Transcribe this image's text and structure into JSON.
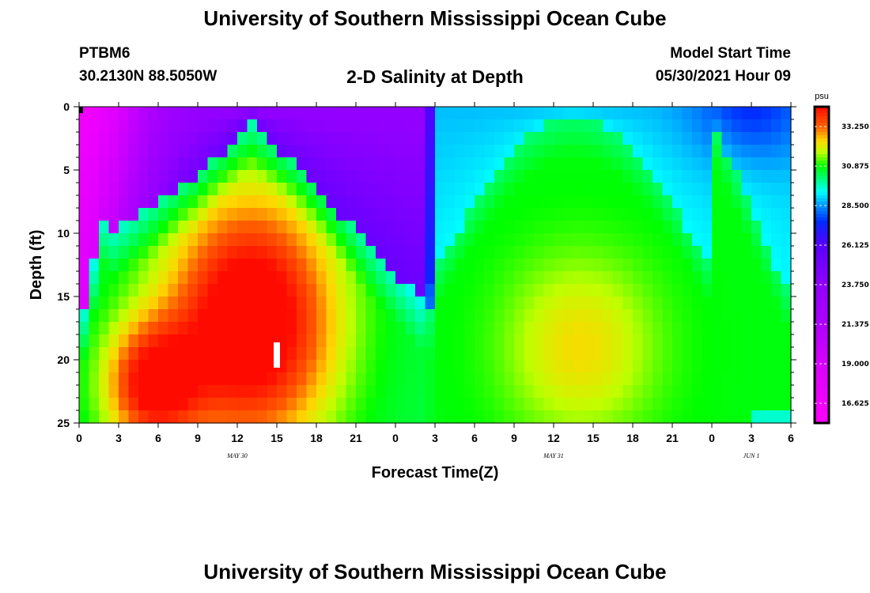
{
  "header": {
    "title": "University of Southern Mississippi Ocean Cube",
    "station": "PTBM6",
    "coordinates": "30.2130N  88.5050W",
    "subtitle": "2-D Salinity at Depth",
    "model_start_label": "Model Start Time",
    "model_start_value": "05/30/2021 Hour 09"
  },
  "footer": {
    "title": "University of Southern Mississippi Ocean Cube"
  },
  "chart_data": {
    "type": "heatmap",
    "title": "2-D Salinity at Depth",
    "xlabel": "Forecast Time(Z)",
    "ylabel": "Depth (ft)",
    "x_ticks": [
      "0",
      "3",
      "6",
      "9",
      "12",
      "15",
      "18",
      "21",
      "0",
      "3",
      "6",
      "9",
      "12",
      "15",
      "18",
      "21",
      "0",
      "3",
      "6"
    ],
    "x_range_hours": [
      0,
      54
    ],
    "y_ticks": [
      "0",
      "5",
      "10",
      "15",
      "20",
      "25"
    ],
    "y_range": [
      0,
      25
    ],
    "date_labels": [
      {
        "text": "MAY 30",
        "hour": 12
      },
      {
        "text": "MAY 31",
        "hour": 36
      },
      {
        "text": "JUN 1",
        "hour": 51
      }
    ],
    "colorbar": {
      "unit": "psu",
      "min": 15.44,
      "max": 34.44,
      "ticks": [
        "33.250",
        "30.875",
        "28.500",
        "26.125",
        "23.750",
        "21.375",
        "19.000",
        "16.625"
      ],
      "tick_values": [
        33.25,
        30.875,
        28.5,
        26.125,
        23.75,
        21.375,
        19.0,
        16.625
      ]
    },
    "marker": {
      "hour": 15,
      "depth": 20
    }
  }
}
